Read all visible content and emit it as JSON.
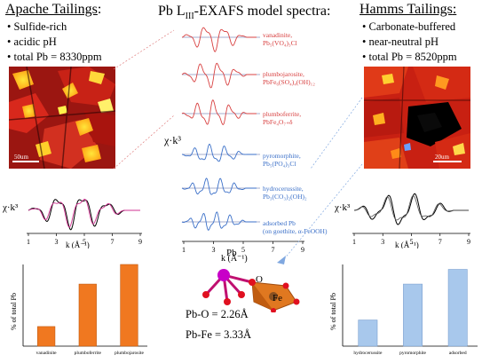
{
  "left": {
    "title": "Apache Tailings",
    "colon": ":",
    "bullets": [
      "Sulfide-rich",
      "acidic pH",
      "total Pb = 8330ppm"
    ],
    "scale_bar": "50um"
  },
  "right": {
    "title": "Hamms Tailings",
    "colon": ":",
    "bullets": [
      "Carbonate-buffered",
      "near-neutral pH",
      "total Pb = 8520ppm"
    ],
    "scale_bar": "20um"
  },
  "center": {
    "title_prefix": "Pb L",
    "title_sub": "III",
    "title_suffix": "-EXAFS model spectra:",
    "ylabel": "χ·k³",
    "xlabel": "k (Å⁻¹)",
    "xticks": [
      "1",
      "3",
      "5",
      "7",
      "9"
    ],
    "spectra": [
      {
        "line1": "vanadinite,",
        "line2": "Pb₅(VO₄)₃Cl",
        "color": "#d84040"
      },
      {
        "line1": "plumbojarosite,",
        "line2": "PbFe₆(SO₄)₄(OH)₁₂",
        "color": "#d84040"
      },
      {
        "line1": "plumboferrite,",
        "line2": "PbFe₄O₇₊δ",
        "color": "#d84040"
      },
      {
        "line1": "pyromorphite,",
        "line2": "Pb₅(PO₄)₃Cl",
        "color": "#3a6fc8"
      },
      {
        "line1": "hydrocerussite,",
        "line2": "Pb₃(CO₃)₂(OH)₂",
        "color": "#3a6fc8"
      },
      {
        "line1": "adsorbed Pb",
        "line2": "(on goethite, α-FeOOH)",
        "color": "#3a6fc8"
      }
    ]
  },
  "left_spectrum": {
    "ylabel": "χ·k³",
    "xlabel": "k (Å⁻¹)",
    "xticks": [
      "1",
      "3",
      "5",
      "7",
      "9"
    ]
  },
  "right_spectrum": {
    "ylabel": "χ·k³",
    "xlabel": "k (Å⁻¹)",
    "xticks": [
      "1",
      "3",
      "5",
      "7",
      "9"
    ]
  },
  "structure": {
    "pb_label": "Pb",
    "o_label": "O",
    "fe_label": "Fe",
    "pbo": "Pb-O = 2.26Å",
    "pbfe": "Pb-Fe = 3.33Å"
  },
  "chart_data": [
    {
      "type": "bar",
      "ylabel": "% of total Pb",
      "categories": [
        "vanadinite",
        "plumboferrite",
        "plumbojarosite"
      ],
      "values": [
        12,
        38,
        50
      ],
      "ylim": [
        0,
        50
      ],
      "color": "#f07820"
    },
    {
      "type": "bar",
      "ylabel": "% of total Pb",
      "categories": [
        "hydrocerussite",
        "pyromorphite",
        "adsorbed"
      ],
      "values": [
        16,
        38,
        47
      ],
      "ylim": [
        0,
        50
      ],
      "color": "#a8c8ec"
    }
  ]
}
